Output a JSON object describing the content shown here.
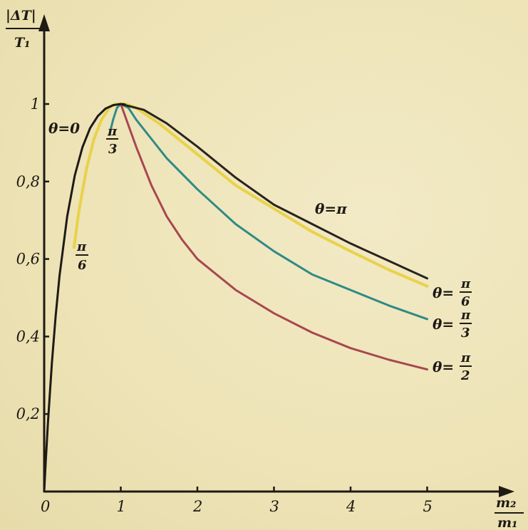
{
  "chart_data": {
    "type": "line",
    "ylabel": {
      "numerator": "|ΔT|",
      "denominator": "T₁"
    },
    "xlabel": {
      "numerator": "m₂",
      "denominator": "m₁"
    },
    "xlim": [
      0,
      5.5
    ],
    "ylim": [
      0,
      1.05
    ],
    "x_ticks": [
      {
        "value": 0,
        "label": "0"
      },
      {
        "value": 1,
        "label": "1"
      },
      {
        "value": 2,
        "label": "2"
      },
      {
        "value": 3,
        "label": "3"
      },
      {
        "value": 4,
        "label": "4"
      },
      {
        "value": 5,
        "label": "5"
      }
    ],
    "y_ticks": [
      {
        "value": 0.2,
        "label": "0,2"
      },
      {
        "value": 0.4,
        "label": "0,4"
      },
      {
        "value": 0.6,
        "label": "0,6"
      },
      {
        "value": 0.8,
        "label": "0,8"
      },
      {
        "value": 1.0,
        "label": "1"
      }
    ],
    "grid": false,
    "series": [
      {
        "key": "theta0",
        "color": "#1f1a15",
        "points": [
          [
            0.0,
            0.0
          ],
          [
            0.02,
            0.078
          ],
          [
            0.05,
            0.181
          ],
          [
            0.1,
            0.331
          ],
          [
            0.15,
            0.453
          ],
          [
            0.2,
            0.556
          ],
          [
            0.3,
            0.71
          ],
          [
            0.4,
            0.816
          ],
          [
            0.5,
            0.889
          ],
          [
            0.6,
            0.938
          ],
          [
            0.7,
            0.969
          ],
          [
            0.8,
            0.988
          ],
          [
            0.9,
            0.997
          ],
          [
            1.0,
            1.0
          ],
          [
            1.05,
            0.999
          ]
        ]
      },
      {
        "key": "theta_pi6",
        "color": "#e8d24a",
        "points": [
          [
            0.39,
            0.63
          ],
          [
            0.45,
            0.72
          ],
          [
            0.55,
            0.83
          ],
          [
            0.65,
            0.91
          ],
          [
            0.75,
            0.96
          ],
          [
            0.85,
            0.99
          ],
          [
            0.93,
            1.0
          ],
          [
            1.07,
            1.0
          ],
          [
            1.2,
            0.99
          ],
          [
            1.5,
            0.95
          ],
          [
            2.0,
            0.87
          ],
          [
            2.5,
            0.79
          ],
          [
            3.0,
            0.73
          ],
          [
            3.5,
            0.67
          ],
          [
            4.0,
            0.62
          ],
          [
            4.5,
            0.572
          ],
          [
            5.0,
            0.53
          ]
        ]
      },
      {
        "key": "theta_pi3",
        "color": "#2f8a86",
        "points": [
          [
            0.85,
            0.92
          ],
          [
            0.9,
            0.96
          ],
          [
            0.95,
            0.99
          ],
          [
            1.0,
            1.0
          ],
          [
            1.1,
            0.99
          ],
          [
            1.2,
            0.96
          ],
          [
            1.4,
            0.91
          ],
          [
            1.6,
            0.86
          ],
          [
            2.0,
            0.78
          ],
          [
            2.5,
            0.69
          ],
          [
            3.0,
            0.62
          ],
          [
            3.5,
            0.56
          ],
          [
            4.0,
            0.52
          ],
          [
            4.5,
            0.48
          ],
          [
            5.0,
            0.445
          ]
        ]
      },
      {
        "key": "theta_pi2",
        "color": "#a8474f",
        "points": [
          [
            1.0,
            1.0
          ],
          [
            1.2,
            0.89
          ],
          [
            1.4,
            0.79
          ],
          [
            1.6,
            0.71
          ],
          [
            1.8,
            0.65
          ],
          [
            2.0,
            0.6
          ],
          [
            2.5,
            0.52
          ],
          [
            3.0,
            0.46
          ],
          [
            3.5,
            0.41
          ],
          [
            4.0,
            0.37
          ],
          [
            4.5,
            0.34
          ],
          [
            5.0,
            0.315
          ]
        ]
      },
      {
        "key": "theta_pi",
        "color": "#2a241d",
        "points": [
          [
            1.0,
            1.0
          ],
          [
            1.3,
            0.985
          ],
          [
            1.6,
            0.95
          ],
          [
            2.0,
            0.89
          ],
          [
            2.5,
            0.81
          ],
          [
            3.0,
            0.74
          ],
          [
            3.5,
            0.69
          ],
          [
            4.0,
            0.64
          ],
          [
            4.5,
            0.595
          ],
          [
            5.0,
            0.55
          ]
        ]
      }
    ],
    "curve_labels": {
      "theta0": "θ=0",
      "theta_pi": "θ=π",
      "theta_pi6_prefix": "θ=",
      "theta_pi3_prefix": "θ=",
      "theta_pi2_prefix": "θ=",
      "pi": "π",
      "den6": "6",
      "den3": "3",
      "den2": "2"
    }
  }
}
